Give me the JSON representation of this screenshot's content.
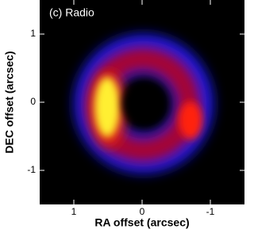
{
  "chart_data": {
    "type": "image",
    "title": "(c) Radio",
    "x_label": "RA offset (arcsec)",
    "y_label": "DEC offset (arcsec)",
    "xlim": [
      1.5,
      -1.5
    ],
    "ylim": [
      -1.5,
      1.5
    ],
    "xticks": [
      1,
      0,
      -1
    ],
    "yticks": [
      1,
      0,
      -1
    ]
  }
}
